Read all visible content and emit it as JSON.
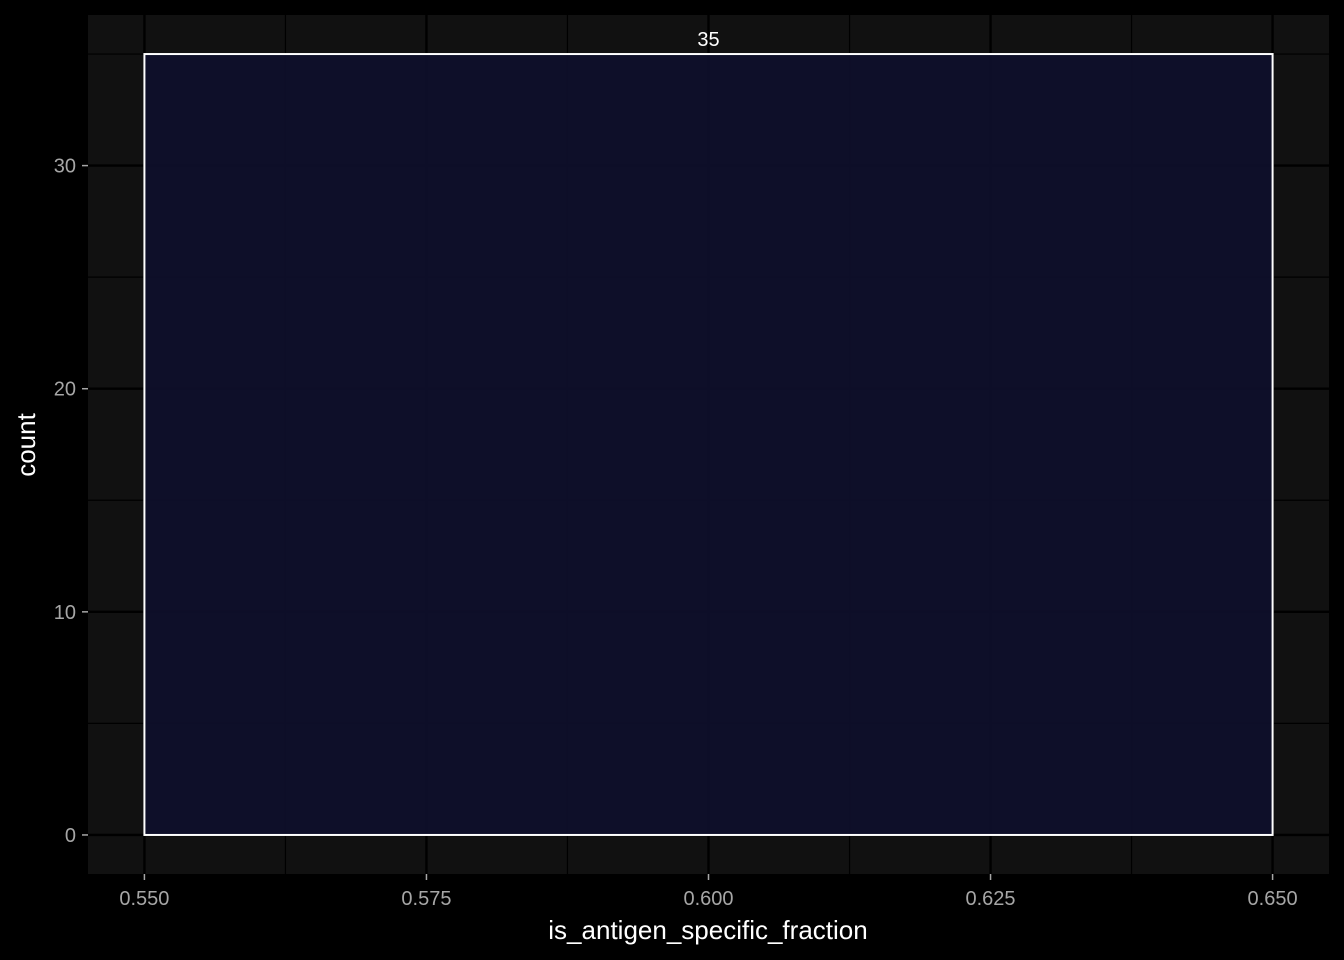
{
  "chart_data": {
    "type": "bar",
    "title": "",
    "xlabel": "is_antigen_specific_fraction",
    "ylabel": "count",
    "xlim": [
      0.545,
      0.655
    ],
    "ylim": [
      -1.75,
      36.75
    ],
    "x_ticks": [
      0.55,
      0.575,
      0.6,
      0.625,
      0.65
    ],
    "x_tick_labels": [
      "0.550",
      "0.575",
      "0.600",
      "0.625",
      "0.650"
    ],
    "x_minor_ticks": [
      0.5625,
      0.5875,
      0.6125,
      0.6375
    ],
    "y_ticks": [
      0,
      10,
      20,
      30
    ],
    "y_tick_labels": [
      "0",
      "10",
      "20",
      "30"
    ],
    "y_minor_ticks": [
      5,
      15,
      25,
      35
    ],
    "bins": [
      {
        "x_start": 0.55,
        "x_end": 0.65,
        "count": 35,
        "label": "35"
      }
    ],
    "grid": true,
    "colors": {
      "background": "#000000",
      "panel": "#111111",
      "grid": "#000000",
      "bar_fill": "#0e0f2b",
      "bar_outline": "#ffffff",
      "tick_text": "#a6a6a6",
      "title_text": "#ffffff"
    }
  }
}
